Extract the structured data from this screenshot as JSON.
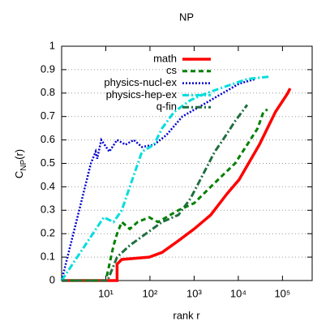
{
  "chart_data": {
    "type": "line",
    "title": "NP",
    "xlabel": "rank r",
    "ylabel": [
      "C",
      "NP",
      "(r)"
    ],
    "xscale": "log",
    "xlim": [
      1,
      470000
    ],
    "xticks": [
      {
        "value": 10,
        "label": "10¹"
      },
      {
        "value": 100,
        "label": "10²"
      },
      {
        "value": 1000,
        "label": "10³"
      },
      {
        "value": 10000,
        "label": "10⁴"
      },
      {
        "value": 100000,
        "label": "10⁵"
      }
    ],
    "ylim": [
      0,
      1
    ],
    "yticks": [
      0,
      0.1,
      0.2,
      0.3,
      0.4,
      0.5,
      0.6,
      0.7,
      0.8,
      0.9,
      1
    ],
    "grid": "y",
    "legend": "top-right",
    "series": [
      {
        "name": "math",
        "color": "#ff0000",
        "style": "solid",
        "x": [
          1,
          18,
          18,
          23,
          96,
          188,
          439,
          1000,
          2380,
          5530,
          10400,
          30000,
          69700,
          132000,
          149000
        ],
        "values": [
          0,
          0,
          0.07,
          0.09,
          0.1,
          0.12,
          0.17,
          0.22,
          0.28,
          0.37,
          0.43,
          0.58,
          0.72,
          0.8,
          0.82
        ]
      },
      {
        "name": "cs",
        "color": "#008000",
        "style": "dashed",
        "x": [
          1,
          10,
          15,
          18,
          23,
          35,
          53,
          96,
          152,
          233,
          439,
          1000,
          2380,
          4480,
          8450,
          15900,
          27500,
          37000,
          45700
        ],
        "values": [
          0,
          0,
          0.15,
          0.2,
          0.25,
          0.22,
          0.25,
          0.27,
          0.25,
          0.27,
          0.3,
          0.33,
          0.4,
          0.45,
          0.5,
          0.58,
          0.65,
          0.72,
          0.73
        ]
      },
      {
        "name": "physics-nucl-ex",
        "color": "#0000cc",
        "style": "dotted",
        "x": [
          1,
          4.6,
          5.9,
          6.4,
          7.9,
          12,
          18,
          28,
          43,
          66,
          124,
          233,
          542,
          1560,
          4480,
          10400,
          24300
        ],
        "values": [
          0,
          0.5,
          0.55,
          0.52,
          0.6,
          0.55,
          0.6,
          0.58,
          0.6,
          0.57,
          0.58,
          0.62,
          0.7,
          0.75,
          0.8,
          0.84,
          0.86
        ]
      },
      {
        "name": "physics-hep-ex",
        "color": "#00dddd",
        "style": "dashdot",
        "x": [
          1,
          9,
          15,
          23,
          35,
          66,
          124,
          188,
          355,
          826,
          1920,
          5530,
          15900,
          49800
        ],
        "values": [
          0,
          0.27,
          0.25,
          0.3,
          0.4,
          0.55,
          0.58,
          0.65,
          0.72,
          0.77,
          0.8,
          0.83,
          0.86,
          0.87
        ]
      },
      {
        "name": "q-fin",
        "color": "#1f6f3f",
        "style": "dashdot",
        "x": [
          1,
          11,
          18,
          35,
          81,
          188,
          439,
          826,
          1560,
          2940,
          4480,
          8450,
          15900
        ],
        "values": [
          0,
          0,
          0.1,
          0.15,
          0.2,
          0.25,
          0.28,
          0.35,
          0.45,
          0.55,
          0.6,
          0.68,
          0.75
        ]
      }
    ]
  }
}
